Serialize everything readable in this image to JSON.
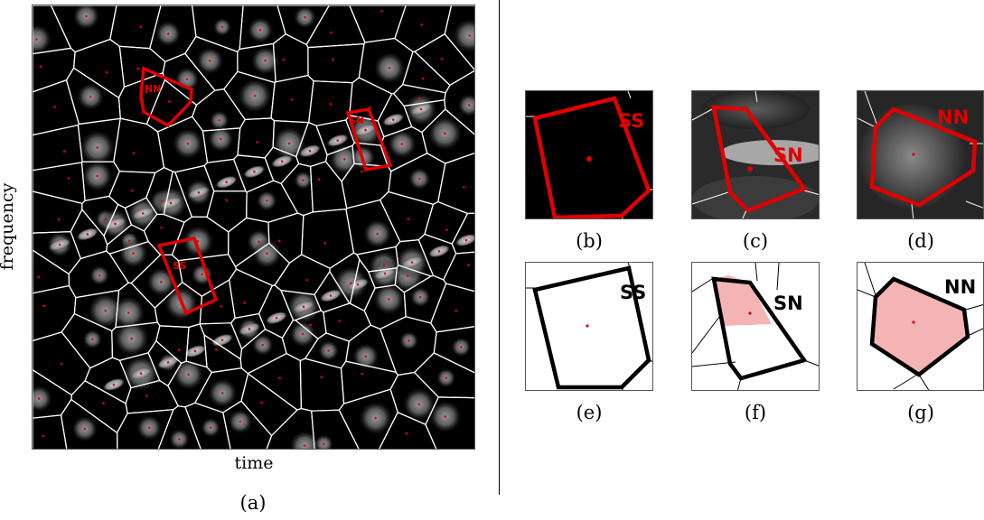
{
  "figure": {
    "main_caption": "(a)",
    "xlabel": "time",
    "ylabel": "frequency",
    "main_tags": {
      "nn": "NN",
      "sn": "SN",
      "ss": "SS"
    },
    "panels": [
      {
        "id": "b",
        "caption": "(b)",
        "tag": "SS"
      },
      {
        "id": "c",
        "caption": "(c)",
        "tag": "SN"
      },
      {
        "id": "d",
        "caption": "(d)",
        "tag": "NN"
      },
      {
        "id": "e",
        "caption": "(e)",
        "tag": "SS"
      },
      {
        "id": "f",
        "caption": "(f)",
        "tag": "SN"
      },
      {
        "id": "g",
        "caption": "(g)",
        "tag": "NN"
      }
    ],
    "colors": {
      "cell_edge": "#ffffff",
      "highlight": "#e00000",
      "point": "#e00000",
      "fill": "#f4b4b4",
      "outline": "#000000"
    }
  }
}
